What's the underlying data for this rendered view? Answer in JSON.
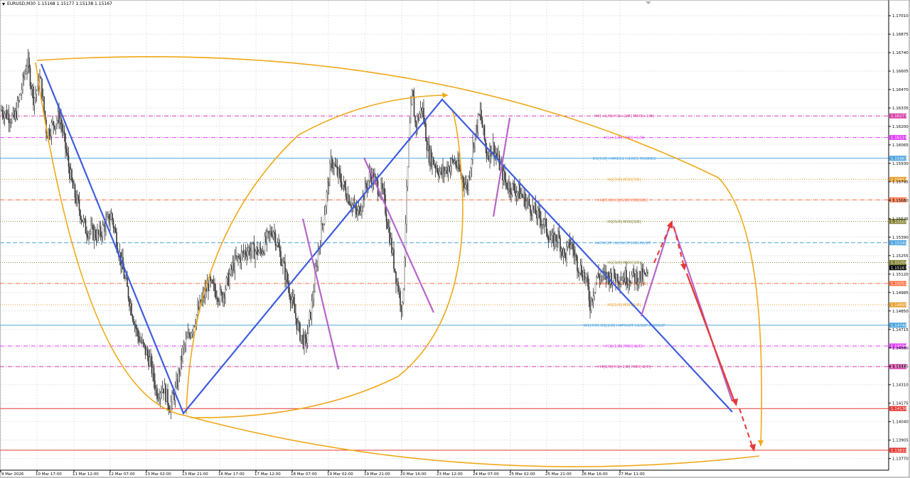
{
  "header": {
    "symbol": "EURUSD,M30",
    "ohlc": "1.15168 1.15177 1.15138 1.15167"
  },
  "chart_data": {
    "type": "candlestick",
    "symbol": "EURUSD",
    "timeframe": "M30",
    "ylim": [
      1.13685,
      1.17125
    ],
    "y_ticks": [
      "1.17010",
      "1.16875",
      "1.16740",
      "1.16605",
      "1.16470",
      "1.16335",
      "1.16200",
      "1.16065",
      "1.15930",
      "1.15795",
      "1.15660",
      "1.15525",
      "1.15390",
      "1.15255",
      "1.15120",
      "1.14985",
      "1.14850",
      "1.14715",
      "1.14580",
      "1.14445",
      "1.14310",
      "1.14175",
      "1.14040",
      "1.13905",
      "1.13770"
    ],
    "x_ticks": [
      "9 Mar 2026",
      "10 Mar 17:00",
      "11 Mar 12:00",
      "12 Mar 07:00",
      "13 Mar 02:00",
      "13 Mar 21:00",
      "16 Mar 17:00",
      "17 Mar 12:00",
      "18 Mar 07:00",
      "19 Mar 02:00",
      "19 Mar 21:00",
      "20 Mar 16:00",
      "23 Mar 12:00",
      "24 Mar 07:00",
      "25 Mar 02:00",
      "25 Mar 21:00",
      "26 Mar 16:00",
      "27 Mar 11:00"
    ],
    "current_price": "1.15167",
    "price_path": [
      [
        0,
        1.1632
      ],
      [
        0.02,
        1.1625
      ],
      [
        0.03,
        1.1645
      ],
      [
        0.04,
        1.1668
      ],
      [
        0.05,
        1.164
      ],
      [
        0.06,
        1.1655
      ],
      [
        0.07,
        1.1615
      ],
      [
        0.09,
        1.1628
      ],
      [
        0.11,
        1.1575
      ],
      [
        0.13,
        1.1545
      ],
      [
        0.15,
        1.154
      ],
      [
        0.17,
        1.1555
      ],
      [
        0.19,
        1.151
      ],
      [
        0.21,
        1.1468
      ],
      [
        0.23,
        1.1448
      ],
      [
        0.24,
        1.1425
      ],
      [
        0.25,
        1.143
      ],
      [
        0.26,
        1.1415
      ],
      [
        0.27,
        1.1428
      ],
      [
        0.28,
        1.1455
      ],
      [
        0.3,
        1.148
      ],
      [
        0.32,
        1.1505
      ],
      [
        0.34,
        1.1495
      ],
      [
        0.36,
        1.152
      ],
      [
        0.38,
        1.153
      ],
      [
        0.4,
        1.1528
      ],
      [
        0.42,
        1.1545
      ],
      [
        0.44,
        1.151
      ],
      [
        0.46,
        1.147
      ],
      [
        0.47,
        1.146
      ],
      [
        0.48,
        1.149
      ],
      [
        0.49,
        1.153
      ],
      [
        0.5,
        1.156
      ],
      [
        0.51,
        1.1595
      ],
      [
        0.53,
        1.1575
      ],
      [
        0.55,
        1.1555
      ],
      [
        0.57,
        1.1585
      ],
      [
        0.59,
        1.157
      ],
      [
        0.6,
        1.154
      ],
      [
        0.61,
        1.151
      ],
      [
        0.62,
        1.1485
      ],
      [
        0.625,
        1.1555
      ],
      [
        0.63,
        1.161
      ],
      [
        0.635,
        1.1645
      ],
      [
        0.64,
        1.162
      ],
      [
        0.65,
        1.1635
      ],
      [
        0.66,
        1.16
      ],
      [
        0.68,
        1.1585
      ],
      [
        0.7,
        1.1595
      ],
      [
        0.72,
        1.1575
      ],
      [
        0.73,
        1.161
      ],
      [
        0.74,
        1.163
      ],
      [
        0.75,
        1.16
      ],
      [
        0.76,
        1.1605
      ],
      [
        0.78,
        1.1578
      ],
      [
        0.8,
        1.1572
      ],
      [
        0.82,
        1.156
      ],
      [
        0.84,
        1.1548
      ],
      [
        0.85,
        1.1535
      ],
      [
        0.86,
        1.154
      ],
      [
        0.87,
        1.1525
      ],
      [
        0.88,
        1.1535
      ],
      [
        0.89,
        1.152
      ],
      [
        0.9,
        1.1512
      ],
      [
        0.905,
        1.1505
      ],
      [
        0.91,
        1.149
      ],
      [
        0.915,
        1.15
      ],
      [
        0.92,
        1.151
      ]
    ],
    "levels": [
      {
        "price": 1.16277,
        "label": "H4[+1/8] H1[+2/8] M30[+2/8]",
        "tag": "1.16277",
        "color": "#d63fa8",
        "style": "dashdot"
      },
      {
        "price": 1.16119,
        "label": "H1[+1/8] M30[+1/8]",
        "tag": "1.16119",
        "color": "#e040fb",
        "style": "dashdot"
      },
      {
        "price": 1.15967,
        "label": "D1[5/8] H4RES1 H1RES M30RES",
        "tag": "1.15967",
        "color": "#4aa3df",
        "style": "solid"
      },
      {
        "price": 1.15813,
        "label": "H1[7/8] M30[7/8]",
        "tag": "1.15813",
        "color": "#e8a030",
        "style": "dotted"
      },
      {
        "price": 1.15663,
        "label": "H4[7/8] H1[6/8] M30[6/8]",
        "tag": "1.15663",
        "color": "#ff7043",
        "style": "dashdot"
      },
      {
        "price": 1.15505,
        "label": "H1[5/8] M30[5/8]",
        "tag": "1.15505",
        "color": "#808030",
        "style": "dotted"
      },
      {
        "price": 1.15349,
        "label": "H4PIVOT H1PIVOT M30PIVOT",
        "tag": "1.15349",
        "color": "#4aa3df",
        "style": "dashed"
      },
      {
        "price": 1.15204,
        "label": "H1[3/8] M30[3/8]",
        "tag": "1.15204",
        "color": "#808030",
        "style": "dotted"
      },
      {
        "price": 1.15051,
        "label": "H4[5/8] H1[2/8] M30[2/8]",
        "tag": "1.15051",
        "color": "#ff7043",
        "style": "dashdot"
      },
      {
        "price": 1.14895,
        "label": "H1[1/8] M30[1/8]",
        "tag": "1.14895",
        "color": "#e8a030",
        "style": "dotted"
      },
      {
        "price": 1.14746,
        "label": "W1[7/8] D1[2/8] H4PIVOT H1SUP M30SUP",
        "tag": "1.14746",
        "color": "#4aa3df",
        "style": "solid"
      },
      {
        "price": 1.14594,
        "label": "H1[-1/8] M30[-1/8]",
        "tag": "1.14594",
        "color": "#e040fb",
        "style": "dashdot"
      },
      {
        "price": 1.14443,
        "label": "H4[3/8] H1[-2/8] M30[-2/8]",
        "tag": "1.14443",
        "color": "#d63fa8",
        "style": "dashdot"
      },
      {
        "price": 1.14136,
        "label": "",
        "tag": "1.14136",
        "color": "#e53935",
        "style": "solid"
      },
      {
        "price": 1.13831,
        "label": "",
        "tag": "1.13831",
        "color": "#e53935",
        "style": "solid"
      }
    ],
    "current_tag_color": "#000000",
    "colors": {
      "blue": "#3d5ce0",
      "orange": "#f0a818",
      "purple": "#b565c8",
      "red": "#e53935",
      "grid": "#e4e4e4",
      "candle": "#333333"
    }
  }
}
